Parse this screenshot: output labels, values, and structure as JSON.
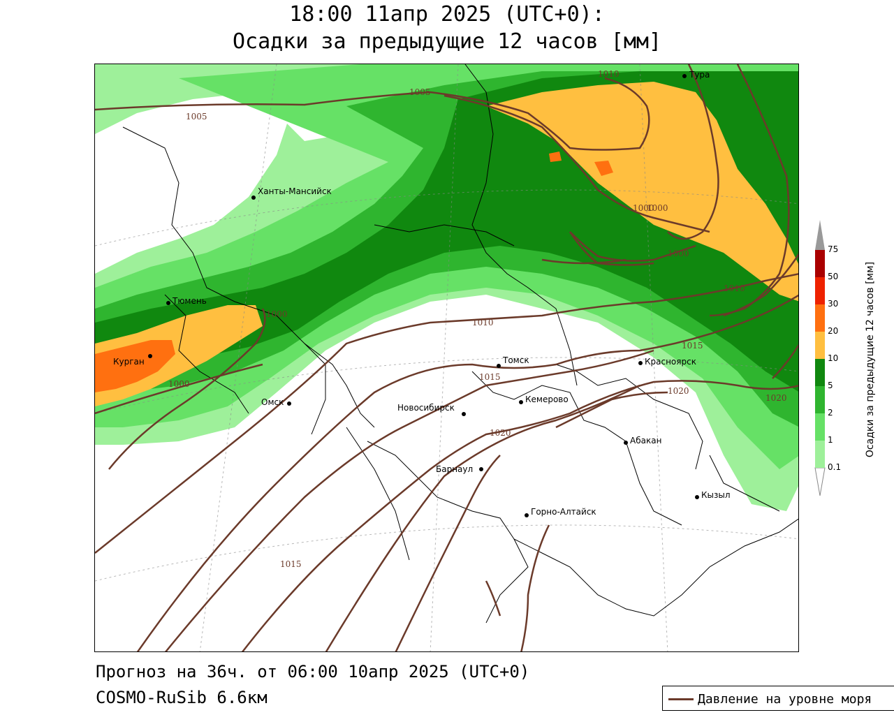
{
  "header": {
    "title_line1": "18:00 11апр 2025 (UTC+0):",
    "title_line2": "Осадки за предыдущие 12 часов [мм]"
  },
  "footer": {
    "forecast": "Прогноз на 36ч. от 06:00 10апр 2025 (UTC+0)",
    "model": "COSMO-RuSib 6.6км"
  },
  "legend": {
    "pressure_label": "Давление на уровне моря"
  },
  "colorbar": {
    "title": "Осадки за предыдущие 12 часов [мм]",
    "levels": [
      {
        "label": "0.1",
        "color": "#9ef09a"
      },
      {
        "label": "1",
        "color": "#66e166"
      },
      {
        "label": "2",
        "color": "#2fb52f"
      },
      {
        "label": "5",
        "color": "#10880f"
      },
      {
        "label": "10",
        "color": "#ffbf40"
      },
      {
        "label": "20",
        "color": "#ff7010"
      },
      {
        "label": "30",
        "color": "#ee2200"
      },
      {
        "label": "50",
        "color": "#aa0000"
      },
      {
        "label": "75",
        "color": "#999999"
      }
    ]
  },
  "cities": [
    {
      "name": "Тура"
    },
    {
      "name": "Ханты-Мансийск"
    },
    {
      "name": "Тюмень"
    },
    {
      "name": "Курган"
    },
    {
      "name": "Омск"
    },
    {
      "name": "Томск"
    },
    {
      "name": "Красноярск"
    },
    {
      "name": "Новосибирск"
    },
    {
      "name": "Кемерово"
    },
    {
      "name": "Абакан"
    },
    {
      "name": "Барнаул"
    },
    {
      "name": "Кызыл"
    },
    {
      "name": "Горно-Алтайск"
    }
  ],
  "isobars": [
    "1005",
    "1005",
    "1000",
    "1000",
    "1000",
    "1000",
    "1010",
    "1010",
    "1010",
    "1015",
    "1015",
    "1015",
    "1020",
    "1020",
    "1020",
    "1000"
  ],
  "colors": {
    "isobar": "#6b3a2a",
    "border": "#000000"
  }
}
